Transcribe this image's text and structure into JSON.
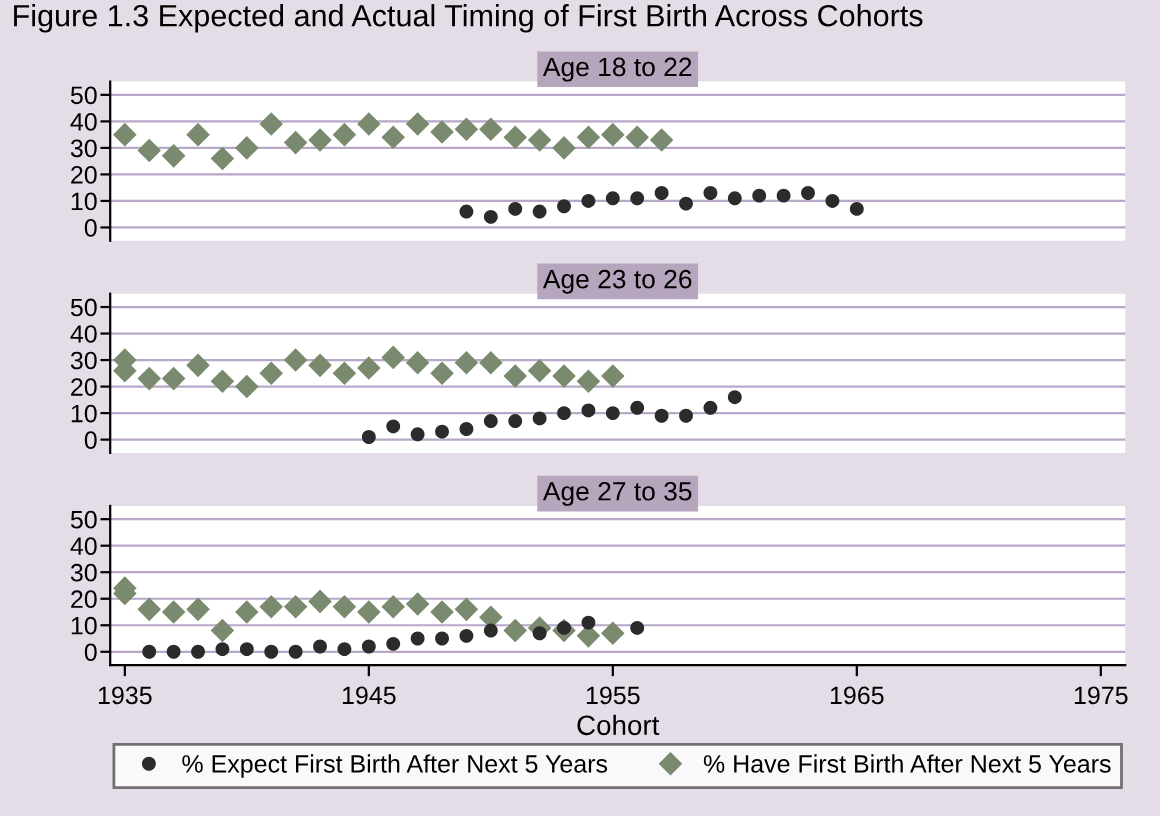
{
  "chart_data": [
    {
      "type": "scatter",
      "title": "Age 18 to 22",
      "annotations": [
        "Figure 1.3 Expected and Actual Timing of First Birth Across Cohorts"
      ],
      "xlim": [
        1934.4,
        1976
      ],
      "ylim": [
        -5,
        55
      ],
      "yticks": [
        0,
        10,
        20,
        30,
        40,
        50
      ],
      "xticks": [
        1935,
        1945,
        1955,
        1965,
        1975
      ],
      "tick_labels": "y",
      "grid": "y",
      "series": [
        {
          "color": "#2b2b2b",
          "marker": "circle",
          "x": [
            1949,
            1950,
            1951,
            1952,
            1953,
            1954,
            1955,
            1956,
            1957,
            1958,
            1959,
            1960,
            1961,
            1962,
            1963,
            1964,
            1965
          ],
          "values": [
            6,
            4,
            7,
            6,
            8,
            10,
            11,
            11,
            13,
            9,
            13,
            11,
            12,
            12,
            13,
            10,
            7
          ]
        },
        {
          "color": "#7a8a6e",
          "marker": "diamond",
          "x": [
            1935,
            1936,
            1937,
            1938,
            1939,
            1940,
            1941,
            1942,
            1943,
            1944,
            1945,
            1946,
            1947,
            1948,
            1949,
            1950,
            1951,
            1952,
            1953,
            1954,
            1955,
            1956,
            1957
          ],
          "values": [
            35,
            29,
            27,
            35,
            26,
            30,
            39,
            32,
            33,
            35,
            39,
            34,
            39,
            36,
            37,
            37,
            34,
            33,
            30,
            34,
            35,
            34,
            33
          ]
        }
      ]
    },
    {
      "type": "scatter",
      "title": "Age 23 to 26",
      "xlim": [
        1934.4,
        1976
      ],
      "ylim": [
        -5,
        55
      ],
      "yticks": [
        0,
        10,
        20,
        30,
        40,
        50
      ],
      "xticks": [
        1935,
        1945,
        1955,
        1965,
        1975
      ],
      "tick_labels": "y",
      "grid": "y",
      "series": [
        {
          "color": "#2b2b2b",
          "marker": "circle",
          "x": [
            1945,
            1946,
            1947,
            1948,
            1949,
            1950,
            1951,
            1952,
            1953,
            1954,
            1955,
            1956,
            1957,
            1958,
            1959,
            1960
          ],
          "values": [
            1,
            5,
            2,
            3,
            4,
            7,
            7,
            8,
            10,
            11,
            10,
            12,
            9,
            9,
            12,
            16
          ]
        },
        {
          "color": "#7a8a6e",
          "marker": "diamond",
          "x": [
            1935,
            1935,
            1936,
            1937,
            1938,
            1939,
            1940,
            1941,
            1942,
            1943,
            1944,
            1945,
            1946,
            1947,
            1948,
            1949,
            1950,
            1951,
            1952,
            1953,
            1954,
            1955
          ],
          "values": [
            30,
            26,
            23,
            23,
            28,
            22,
            20,
            25,
            30,
            28,
            25,
            27,
            31,
            29,
            25,
            29,
            29,
            24,
            26,
            24,
            22,
            24
          ]
        }
      ]
    },
    {
      "type": "scatter",
      "title": "Age 27 to 35",
      "xlabel": "Cohort",
      "legend": "bottom",
      "xlim": [
        1934.4,
        1976
      ],
      "ylim": [
        -5,
        55
      ],
      "yticks": [
        0,
        10,
        20,
        30,
        40,
        50
      ],
      "xticks": [
        1935,
        1945,
        1955,
        1965,
        1975
      ],
      "grid": "y",
      "series": [
        {
          "name": "% Expect First Birth After Next 5 Years",
          "color": "#2b2b2b",
          "marker": "circle",
          "x": [
            1936,
            1937,
            1938,
            1939,
            1940,
            1941,
            1942,
            1943,
            1944,
            1945,
            1946,
            1947,
            1948,
            1949,
            1950,
            1951,
            1952,
            1953,
            1954,
            1955,
            1956
          ],
          "values": [
            0,
            0,
            0,
            1,
            1,
            0,
            0,
            2,
            1,
            2,
            3,
            5,
            5,
            6,
            8,
            null,
            7,
            9,
            11,
            null,
            9
          ]
        },
        {
          "name": "% Have First Birth After Next 5 Years",
          "color": "#7a8a6e",
          "marker": "diamond",
          "x": [
            1935,
            1935,
            1936,
            1937,
            1938,
            1939,
            1940,
            1941,
            1942,
            1943,
            1944,
            1945,
            1946,
            1947,
            1948,
            1949,
            1950,
            1951,
            1952,
            1953,
            1954,
            1955
          ],
          "values": [
            24,
            22,
            16,
            15,
            16,
            8,
            15,
            17,
            17,
            19,
            17,
            15,
            17,
            18,
            15,
            16,
            13,
            8,
            9,
            8,
            6,
            7
          ]
        }
      ]
    }
  ]
}
